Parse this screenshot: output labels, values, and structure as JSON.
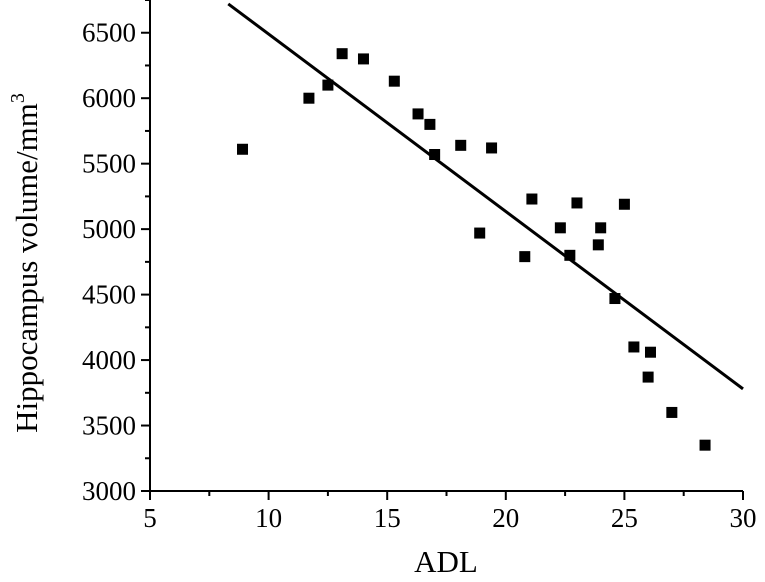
{
  "chart_data": {
    "type": "scatter",
    "title": "",
    "xlabel": "ADL",
    "ylabel_main": "Hippocampus volume/mm",
    "ylabel_sup": "3",
    "xlim": [
      5,
      30
    ],
    "ylim": [
      3000,
      6750
    ],
    "xticks": [
      5,
      10,
      15,
      20,
      25,
      30
    ],
    "yticks": [
      3000,
      3500,
      4000,
      4500,
      5000,
      5500,
      6000,
      6500
    ],
    "grid": false,
    "marker": "square",
    "color": "#000000",
    "series": [
      {
        "points": [
          {
            "x": 8.9,
            "y": 5610
          },
          {
            "x": 11.7,
            "y": 6000
          },
          {
            "x": 12.5,
            "y": 6100
          },
          {
            "x": 13.1,
            "y": 6340
          },
          {
            "x": 14.0,
            "y": 6300
          },
          {
            "x": 15.3,
            "y": 6130
          },
          {
            "x": 16.3,
            "y": 5880
          },
          {
            "x": 16.8,
            "y": 5800
          },
          {
            "x": 17.0,
            "y": 5570
          },
          {
            "x": 18.1,
            "y": 5640
          },
          {
            "x": 18.9,
            "y": 4970
          },
          {
            "x": 19.4,
            "y": 5620
          },
          {
            "x": 20.8,
            "y": 4790
          },
          {
            "x": 21.1,
            "y": 5230
          },
          {
            "x": 22.3,
            "y": 5010
          },
          {
            "x": 22.7,
            "y": 4800
          },
          {
            "x": 23.0,
            "y": 5200
          },
          {
            "x": 23.9,
            "y": 4880
          },
          {
            "x": 24.0,
            "y": 5010
          },
          {
            "x": 24.6,
            "y": 4470
          },
          {
            "x": 25.0,
            "y": 5190
          },
          {
            "x": 25.4,
            "y": 4100
          },
          {
            "x": 26.0,
            "y": 3870
          },
          {
            "x": 26.1,
            "y": 4060
          },
          {
            "x": 27.0,
            "y": 3600
          },
          {
            "x": 28.4,
            "y": 3350
          }
        ]
      }
    ],
    "fit_line": {
      "x1": 8.3,
      "y1": 6720,
      "x2": 30,
      "y2": 3780
    }
  }
}
